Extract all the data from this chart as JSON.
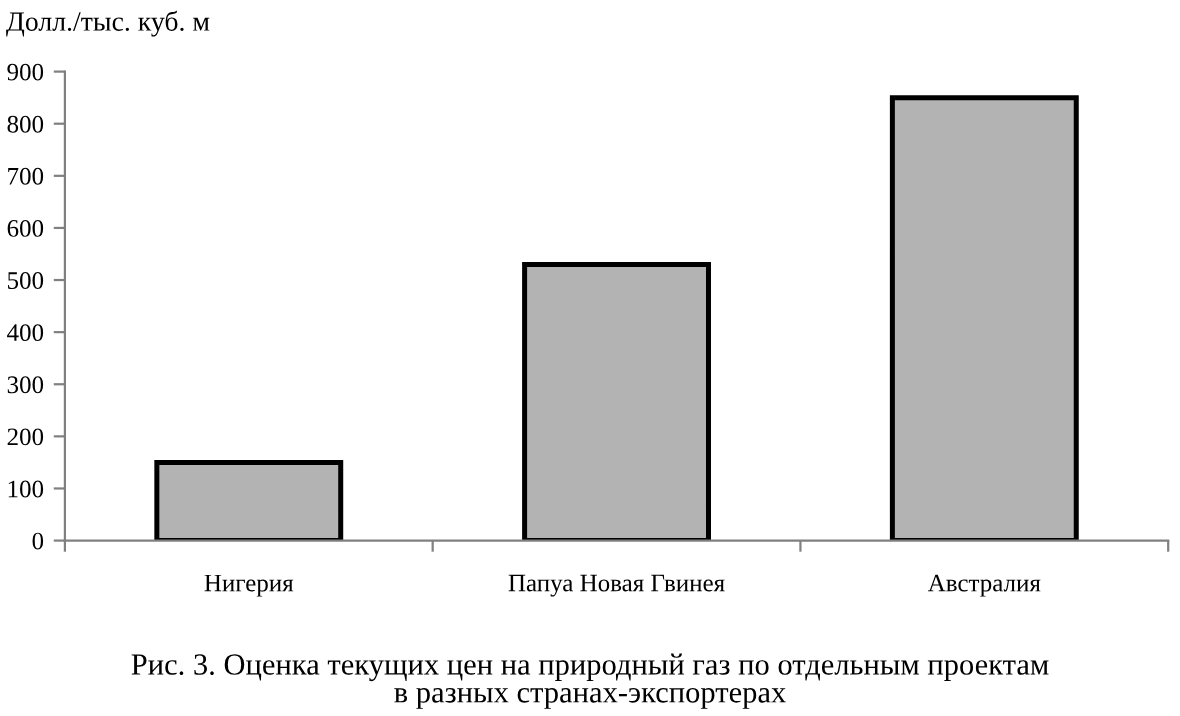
{
  "chart_data": {
    "type": "bar",
    "ylabel": "Долл./тыс. куб. м",
    "categories": [
      "Нигерия",
      "Папуа Новая Гвинея",
      "Австралия"
    ],
    "values": [
      150,
      530,
      850
    ],
    "color": "#b3b3b3",
    "ylim": [
      0,
      900
    ],
    "yticks": [
      0,
      100,
      200,
      300,
      400,
      500,
      600,
      700,
      800,
      900
    ],
    "annotations": [
      "Рис. 3. Оценка текущих цен на природный газ по отдельным проектам\nв разных странах-экспортерах"
    ]
  }
}
